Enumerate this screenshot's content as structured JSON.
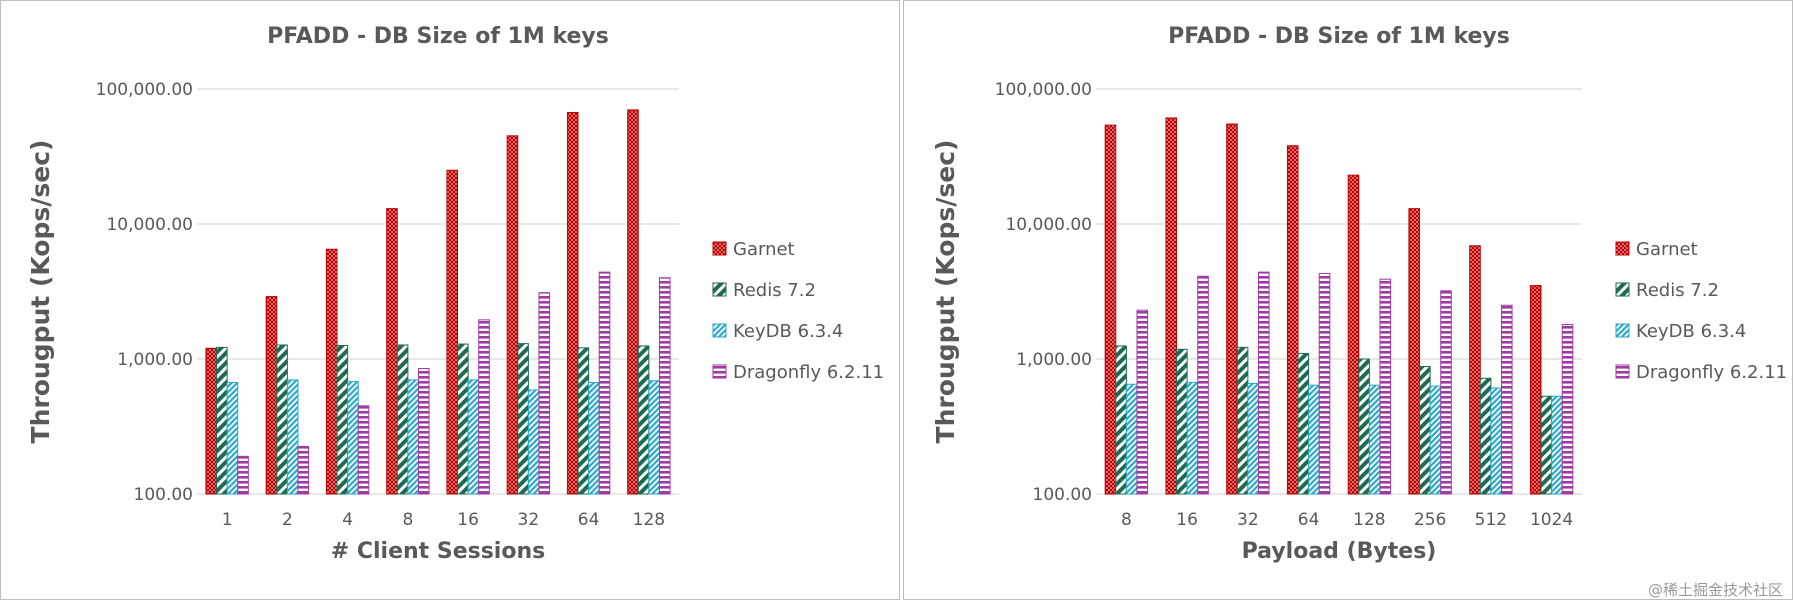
{
  "chart_data": [
    {
      "type": "bar",
      "title": "PFADD - DB Size of 1M  keys",
      "xlabel": "# Client Sessions",
      "ylabel": "Througput (Kops/sec)",
      "yscale": "log",
      "ylim": [
        100,
        100000
      ],
      "yticks": [
        "100.00",
        "1,000.00",
        "10,000.00",
        "100,000.00"
      ],
      "grid": true,
      "legend_position": "right",
      "categories": [
        "1",
        "2",
        "4",
        "8",
        "16",
        "32",
        "64",
        "128"
      ],
      "series": [
        {
          "name": "Garnet",
          "values": [
            1200,
            2900,
            6500,
            13000,
            25000,
            45000,
            67000,
            70000
          ]
        },
        {
          "name": "Redis 7.2",
          "values": [
            1220,
            1270,
            1260,
            1270,
            1290,
            1300,
            1210,
            1250
          ]
        },
        {
          "name": "KeyDB 6.3.4",
          "values": [
            670,
            700,
            680,
            700,
            700,
            590,
            670,
            690
          ]
        },
        {
          "name": "Dragonfly 6.2.11",
          "values": [
            190,
            225,
            450,
            850,
            1950,
            3100,
            4400,
            4000
          ]
        }
      ]
    },
    {
      "type": "bar",
      "title": "PFADD - DB Size of 1M  keys",
      "xlabel": "Payload (Bytes)",
      "ylabel": "Througput (Kops/sec)",
      "yscale": "log",
      "ylim": [
        100,
        100000
      ],
      "yticks": [
        "100.00",
        "1,000.00",
        "10,000.00",
        "100,000.00"
      ],
      "grid": true,
      "legend_position": "right",
      "categories": [
        "8",
        "16",
        "32",
        "64",
        "128",
        "256",
        "512",
        "1024"
      ],
      "series": [
        {
          "name": "Garnet",
          "values": [
            54000,
            61000,
            55000,
            38000,
            23000,
            13000,
            6900,
            3500
          ]
        },
        {
          "name": "Redis 7.2",
          "values": [
            1250,
            1180,
            1220,
            1100,
            1000,
            880,
            720,
            530
          ]
        },
        {
          "name": "KeyDB 6.3.4",
          "values": [
            650,
            670,
            660,
            640,
            640,
            630,
            610,
            530
          ]
        },
        {
          "name": "Dragonfly 6.2.11",
          "values": [
            2300,
            4100,
            4400,
            4300,
            3900,
            3200,
            2500,
            1800
          ]
        }
      ]
    }
  ],
  "series_colors": [
    "#c00000",
    "#1e6b52",
    "#2aa9c9",
    "#a23aa6"
  ],
  "watermark": "@稀土掘金技术社区"
}
